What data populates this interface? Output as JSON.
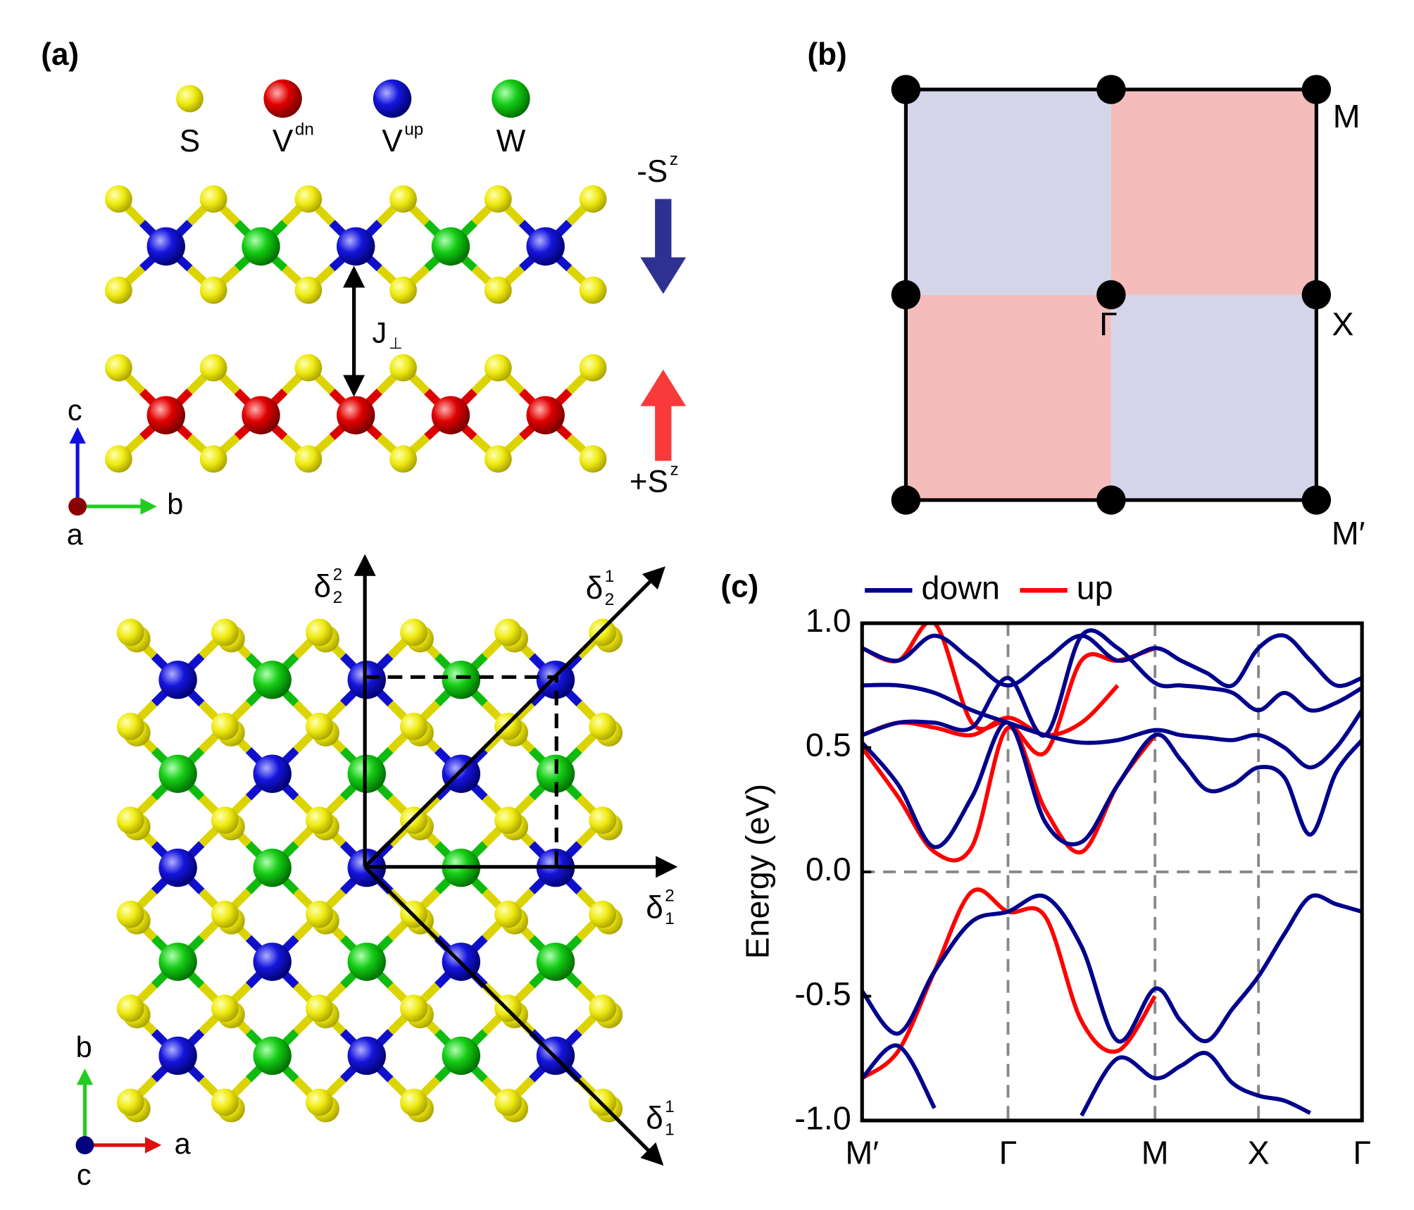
{
  "panel_a": {
    "label": "(a)",
    "legend": [
      {
        "symbol": "S"
      },
      {
        "symbol": "V",
        "sup": "dn"
      },
      {
        "symbol": "V",
        "sup": "up"
      },
      {
        "symbol": "W"
      }
    ],
    "side_view": {
      "exchange": {
        "symbol": "J",
        "sub": "⊥"
      },
      "spin_top": {
        "symbol": "-S",
        "sup": "z"
      },
      "spin_bottom": {
        "symbol": "+S",
        "sup": "z"
      },
      "axes": [
        "c",
        "b",
        "a"
      ]
    },
    "top_view": {
      "vectors": [
        {
          "symbol": "δ",
          "sub": "2",
          "sup": "2"
        },
        {
          "symbol": "δ",
          "sub": "2",
          "sup": "1"
        },
        {
          "symbol": "δ",
          "sub": "1",
          "sup": "2"
        },
        {
          "symbol": "δ",
          "sub": "1",
          "sup": "1"
        }
      ],
      "axes": [
        "b",
        "a",
        "c"
      ]
    }
  },
  "panel_b": {
    "label": "(b)",
    "points": [
      "M",
      "X",
      "Γ",
      "M′"
    ]
  },
  "chart_data": {
    "type": "line",
    "panel_label": "(c)",
    "y_label": "Energy (eV)",
    "x": [
      0,
      0.35,
      0.7,
      1.06,
      1.41,
      1.77,
      2.12,
      2.47,
      2.83,
      3.08,
      3.33,
      3.58,
      3.83,
      4.08,
      4.33,
      4.58,
      4.83
    ],
    "xlim": [
      0,
      4.83
    ],
    "xticks": [
      {
        "value": 0,
        "label": "M′"
      },
      {
        "value": 1.41,
        "label": "Γ"
      },
      {
        "value": 2.83,
        "label": "M"
      },
      {
        "value": 3.83,
        "label": "X"
      },
      {
        "value": 4.83,
        "label": "Γ"
      }
    ],
    "ylim": [
      -1,
      1
    ],
    "yticks": [
      {
        "value": -1,
        "label": "-1.0"
      },
      {
        "value": -0.5,
        "label": "-0.5"
      },
      {
        "value": 0,
        "label": "0.0"
      },
      {
        "value": 0.5,
        "label": "0.5"
      },
      {
        "value": 1,
        "label": "1.0"
      }
    ],
    "grid": true,
    "legend": "top",
    "series": [
      {
        "name": "down",
        "color": "#00008b",
        "values": [
          0.52,
          0.35,
          0.1,
          0.3,
          0.6,
          0.2,
          0.12,
          0.35,
          0.55,
          0.45,
          0.33,
          0.35,
          0.42,
          0.38,
          0.15,
          0.4,
          0.53
        ]
      },
      {
        "name": "up",
        "color": "#ff0000",
        "values": [
          0.5,
          0.3,
          0.08,
          0.1,
          0.58,
          0.25,
          0.08,
          0.35,
          0.55,
          null,
          null,
          null,
          null,
          null,
          null,
          null,
          null
        ]
      },
      {
        "name": "down",
        "color": "#00008b",
        "values": [
          -0.48,
          -0.65,
          -0.4,
          -0.2,
          -0.16,
          -0.1,
          -0.3,
          -0.68,
          -0.47,
          -0.6,
          -0.68,
          -0.55,
          -0.42,
          -0.25,
          -0.1,
          -0.13,
          -0.16
        ]
      },
      {
        "name": "up",
        "color": "#ff0000",
        "values": [
          -0.83,
          -0.72,
          -0.4,
          -0.08,
          -0.16,
          -0.18,
          -0.6,
          -0.72,
          -0.5,
          null,
          null,
          null,
          null,
          null,
          null,
          null,
          null
        ]
      },
      {
        "name": "down",
        "color": "#00008b",
        "values": [
          -0.83,
          -0.7,
          -0.95,
          null,
          null,
          null,
          -0.98,
          -0.75,
          -0.83,
          -0.78,
          -0.73,
          -0.85,
          -0.9,
          -0.92,
          -0.97,
          null,
          null
        ]
      },
      {
        "name": "up",
        "color": "#ff0000",
        "values": [
          0.9,
          0.85,
          1.0,
          0.6,
          0.6,
          0.48,
          0.85,
          0.85,
          0.9,
          null,
          null,
          null,
          null,
          null,
          null,
          null,
          null
        ]
      },
      {
        "name": "up",
        "color": "#ff0000",
        "values": [
          0.55,
          0.6,
          0.58,
          0.55,
          0.62,
          0.55,
          0.6,
          0.75,
          null,
          null,
          null,
          null,
          null,
          null,
          null,
          null,
          null
        ]
      },
      {
        "name": "down",
        "color": "#00008b",
        "values": [
          0.75,
          0.75,
          0.72,
          0.65,
          0.6,
          0.55,
          0.52,
          0.53,
          0.57,
          0.55,
          0.54,
          0.53,
          0.55,
          0.5,
          0.42,
          0.5,
          0.65
        ]
      },
      {
        "name": "down",
        "color": "#00008b",
        "values": [
          0.55,
          0.6,
          0.6,
          0.58,
          0.78,
          0.55,
          0.95,
          0.9,
          0.76,
          0.75,
          0.74,
          0.72,
          0.65,
          0.72,
          0.65,
          0.68,
          0.74
        ]
      },
      {
        "name": "down",
        "color": "#00008b",
        "values": [
          0.9,
          0.85,
          0.95,
          0.85,
          0.75,
          0.85,
          0.95,
          0.85,
          0.9,
          0.85,
          0.8,
          0.75,
          0.9,
          0.95,
          0.85,
          0.75,
          0.78
        ]
      }
    ]
  }
}
